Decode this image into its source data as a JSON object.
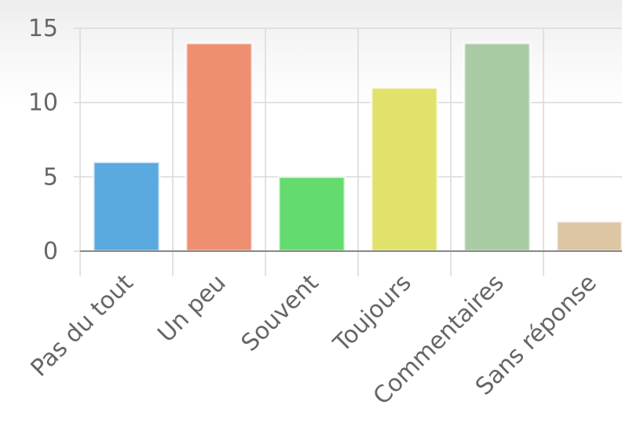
{
  "chart_data": {
    "type": "bar",
    "categories": [
      "Pas du tout",
      "Un peu",
      "Souvent",
      "Toujours",
      "Commentaires",
      "Sans réponse"
    ],
    "values": [
      6,
      14,
      5,
      11,
      14,
      2
    ],
    "colors": [
      "#5aa9df",
      "#ee8f72",
      "#64db6e",
      "#e1e26c",
      "#a8cba3",
      "#dcc6a3"
    ],
    "yticks": [
      "0",
      "5",
      "10",
      "15"
    ],
    "ylim": [
      0,
      15
    ],
    "grid": true,
    "legend": "none",
    "title": "",
    "xlabel": "",
    "ylabel": ""
  }
}
